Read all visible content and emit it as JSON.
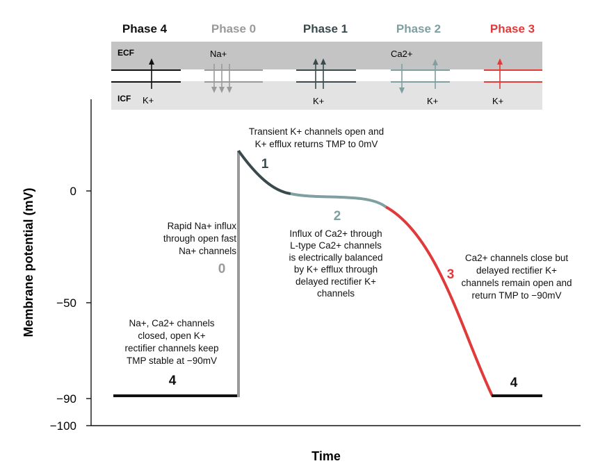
{
  "colors": {
    "phase4": "#111111",
    "phase0": "#9a9a9a",
    "phase1": "#3a4a4c",
    "phase2": "#7f9fa0",
    "phase3": "#e03a3a",
    "ecf_band": "#c4c4c4",
    "icf_band": "#e3e3e3"
  },
  "phase_headers": [
    "Phase 4",
    "Phase 0",
    "Phase 1",
    "Phase 2",
    "Phase 3"
  ],
  "membrane_panel": {
    "ecf_label": "ECF",
    "icf_label": "ICF",
    "ion_labels": {
      "phase4_k": "K+",
      "phase0_na": "Na+",
      "phase1_k": "K+",
      "phase2_ca": "Ca2+",
      "phase2_k": "K+",
      "phase3_k": "K+"
    }
  },
  "chart_data": {
    "type": "line",
    "ylabel": "Membrane potential (mV)",
    "xlabel": "Time",
    "y_ticks": [
      {
        "value": 0,
        "label": "0"
      },
      {
        "value": -50,
        "label": "−50"
      },
      {
        "value": -90,
        "label": "−90"
      },
      {
        "value": -100,
        "label": "−100"
      }
    ],
    "phases": [
      {
        "id": "4",
        "label": "4",
        "description": [
          "Na+, Ca2+ channels",
          "closed, open K+",
          "rectifier channels keep",
          "TMP stable at −90mV"
        ]
      },
      {
        "id": "0",
        "label": "0",
        "description": [
          "Rapid Na+ influx",
          "through open fast",
          "Na+ channels"
        ]
      },
      {
        "id": "1",
        "label": "1",
        "description": [
          "Transient K+ channels open and",
          "K+ efflux returns TMP to 0mV"
        ]
      },
      {
        "id": "2",
        "label": "2",
        "description": [
          "Influx of Ca2+ through",
          "L-type Ca2+ channels",
          "is electrically balanced",
          "by K+ efflux through",
          "delayed rectifier K+",
          "channels"
        ]
      },
      {
        "id": "3",
        "label": "3",
        "description": [
          "Ca2+ channels close but",
          "delayed rectifier K+",
          "channels remain open and",
          "return TMP to −90mV"
        ]
      },
      {
        "id": "4b",
        "label": "4",
        "description": []
      }
    ]
  }
}
